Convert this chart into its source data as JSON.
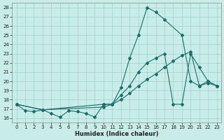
{
  "xlabel": "Humidex (Indice chaleur)",
  "bg_color": "#c8ecea",
  "grid_color": "#a0d0cc",
  "line_color": "#1a6e68",
  "xlim": [
    -0.5,
    23.5
  ],
  "ylim": [
    15.5,
    28.5
  ],
  "yticks": [
    16,
    17,
    18,
    19,
    20,
    21,
    22,
    23,
    24,
    25,
    26,
    27,
    28
  ],
  "xticks": [
    0,
    1,
    2,
    3,
    4,
    5,
    6,
    7,
    8,
    9,
    10,
    11,
    12,
    13,
    14,
    15,
    16,
    17,
    18,
    19,
    20,
    21,
    22,
    23
  ],
  "line1_x": [
    0,
    1,
    2,
    3,
    4,
    5,
    6,
    7,
    8,
    9,
    10,
    11,
    12,
    13,
    14,
    15,
    16,
    17,
    19,
    20,
    21,
    22,
    23
  ],
  "line1_y": [
    17.5,
    16.8,
    16.7,
    16.9,
    16.5,
    16.1,
    16.8,
    16.7,
    16.5,
    16.1,
    17.5,
    17.5,
    19.3,
    22.5,
    25.0,
    28.0,
    27.5,
    26.7,
    25.0,
    20.0,
    19.5,
    20.0,
    19.5
  ],
  "line2_x": [
    0,
    3,
    10,
    11,
    12,
    13,
    14,
    15,
    16,
    17,
    18,
    19,
    20,
    21,
    22,
    23
  ],
  "line2_y": [
    17.5,
    16.9,
    17.5,
    17.5,
    18.5,
    19.5,
    21.0,
    22.0,
    22.5,
    23.0,
    17.5,
    17.5,
    23.0,
    21.5,
    20.0,
    19.5
  ],
  "line3_x": [
    0,
    3,
    10,
    11,
    12,
    13,
    14,
    15,
    16,
    17,
    18,
    19,
    20,
    21,
    22,
    23
  ],
  "line3_y": [
    17.5,
    16.9,
    17.2,
    17.5,
    18.0,
    18.7,
    19.5,
    20.2,
    20.8,
    21.5,
    22.2,
    22.8,
    23.2,
    19.5,
    19.8,
    19.5
  ]
}
